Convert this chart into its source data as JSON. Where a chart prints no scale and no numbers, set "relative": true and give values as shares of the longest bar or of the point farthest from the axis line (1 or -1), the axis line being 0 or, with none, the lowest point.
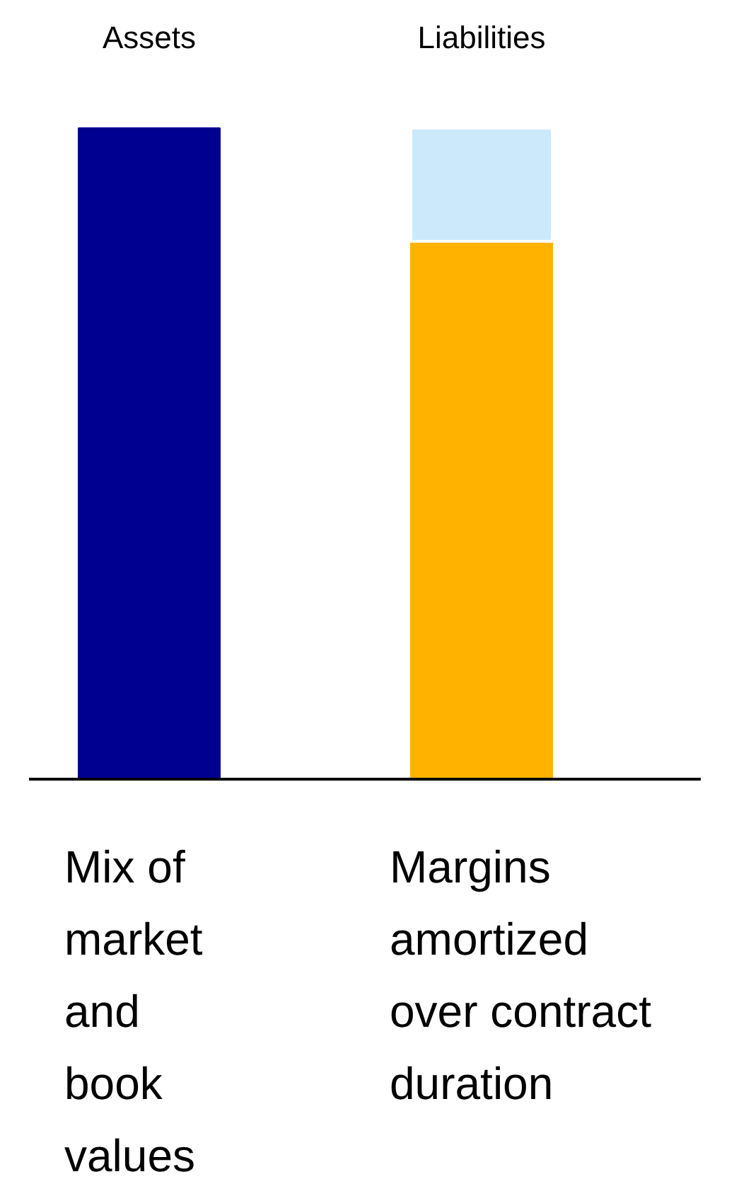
{
  "chart_data": {
    "type": "bar",
    "stacked": true,
    "relative": true,
    "categories": [
      "Assets",
      "Liabilities"
    ],
    "series": [
      {
        "colors": [
          "#000090",
          "#ffb300"
        ],
        "values": [
          1,
          0.826
        ]
      },
      {
        "color": "#cce9fb",
        "values": [
          null,
          0.174
        ]
      }
    ],
    "annotations": [
      "Mix of market and book values",
      "Margins amortized over contract duration"
    ]
  }
}
